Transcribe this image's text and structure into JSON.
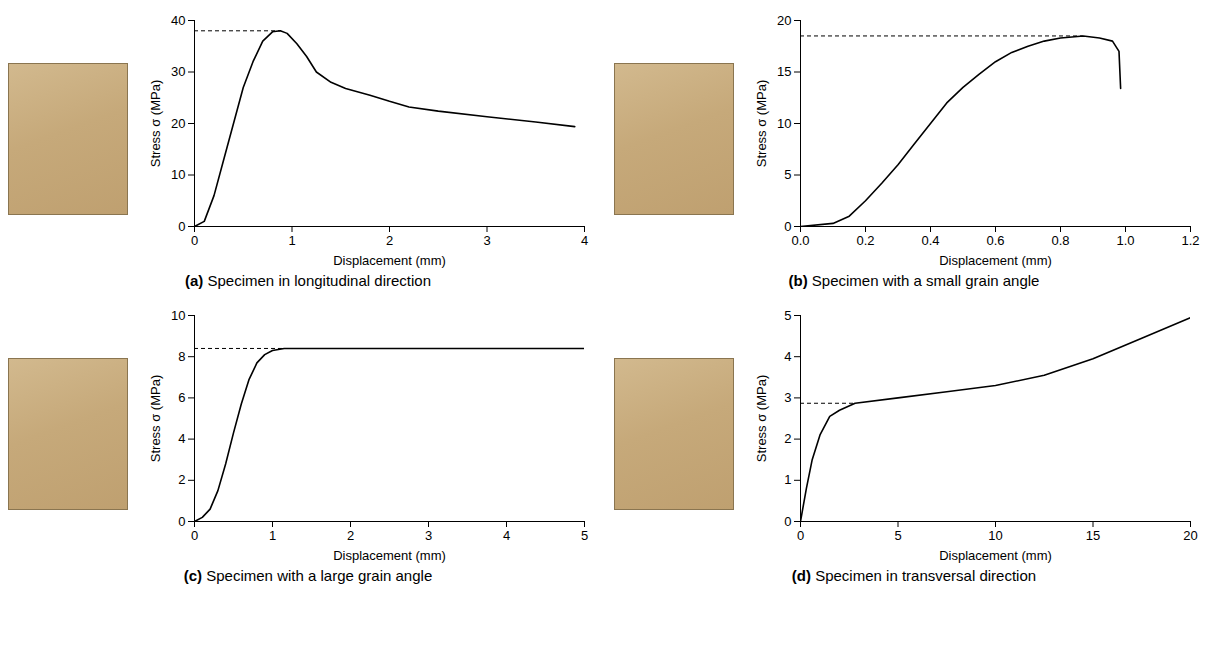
{
  "chart_data": [
    {
      "type": "line",
      "title": "(a) Specimen in longitudinal direction",
      "x_label": "Displacement (mm)",
      "y_label": "Stress σ (MPa)",
      "color": "#000000",
      "x": [
        0,
        0.1,
        0.2,
        0.3,
        0.4,
        0.5,
        0.6,
        0.7,
        0.8,
        0.88,
        0.95,
        1.05,
        1.15,
        1.25,
        1.4,
        1.55,
        1.8,
        2.0,
        2.2,
        2.5,
        3.0,
        3.5,
        3.9
      ],
      "values": [
        0,
        1,
        6,
        13,
        20,
        27,
        32,
        36,
        37.8,
        38,
        37.5,
        35.5,
        33,
        30,
        28,
        26.8,
        25.5,
        24.3,
        23.2,
        22.4,
        21.3,
        20.3,
        19.4
      ],
      "xlim": [
        0,
        4
      ],
      "xticks": [
        0,
        1,
        2,
        3,
        4
      ],
      "ylim": [
        0,
        40
      ],
      "yticks": [
        0,
        10,
        20,
        30,
        40
      ],
      "reference_line": {
        "y": 38,
        "x_end": 0.88,
        "line_style": "dashed"
      }
    },
    {
      "type": "line",
      "title": "(b) Specimen with a small grain angle",
      "x_label": "Displacement (mm)",
      "y_label": "Stress σ (MPa)",
      "color": "#000000",
      "x": [
        0,
        0.1,
        0.15,
        0.2,
        0.25,
        0.3,
        0.35,
        0.4,
        0.45,
        0.5,
        0.55,
        0.6,
        0.65,
        0.7,
        0.75,
        0.8,
        0.87,
        0.92,
        0.96,
        0.98,
        0.985
      ],
      "values": [
        0,
        0.3,
        1,
        2.5,
        4.2,
        6,
        8,
        10,
        12,
        13.5,
        14.8,
        16,
        16.9,
        17.5,
        18,
        18.3,
        18.5,
        18.3,
        18,
        17,
        13.4
      ],
      "xlim": [
        0,
        1.2
      ],
      "xticks": [
        {
          "value": 0,
          "label": "0.0"
        },
        0.2,
        0.4,
        0.6,
        0.8,
        {
          "value": 1,
          "label": "1.0"
        },
        1.2
      ],
      "ylim": [
        0,
        20
      ],
      "yticks": [
        0,
        5,
        10,
        15,
        20
      ],
      "reference_line": {
        "y": 18.5,
        "x_end": 0.87,
        "line_style": "dashed"
      }
    },
    {
      "type": "line",
      "title": "(c) Specimen with a large grain angle",
      "x_label": "Displacement (mm)",
      "y_label": "Stress σ (MPa)",
      "color": "#000000",
      "x": [
        0,
        0.1,
        0.2,
        0.3,
        0.4,
        0.5,
        0.6,
        0.7,
        0.8,
        0.9,
        1.0,
        1.15,
        2,
        3,
        4,
        5
      ],
      "values": [
        0,
        0.2,
        0.6,
        1.5,
        2.8,
        4.3,
        5.7,
        6.9,
        7.7,
        8.1,
        8.3,
        8.4,
        8.4,
        8.4,
        8.4,
        8.4
      ],
      "xlim": [
        0,
        5
      ],
      "xticks": [
        0,
        1,
        2,
        3,
        4,
        5
      ],
      "ylim": [
        0,
        10
      ],
      "yticks": [
        0,
        2,
        4,
        6,
        8,
        10
      ],
      "reference_line": {
        "y": 8.4,
        "x_end": 1.15,
        "line_style": "dashed"
      }
    },
    {
      "type": "line",
      "title": "(d) Specimen in transversal direction",
      "x_label": "Displacement (mm)",
      "y_label": "Stress σ (MPa)",
      "color": "#000000",
      "x": [
        0,
        0.3,
        0.6,
        1,
        1.5,
        2,
        2.8,
        5,
        7.5,
        10,
        12.5,
        15,
        17.5,
        20
      ],
      "values": [
        0,
        0.8,
        1.5,
        2.1,
        2.55,
        2.7,
        2.87,
        3,
        3.15,
        3.3,
        3.55,
        3.95,
        4.45,
        4.95
      ],
      "xlim": [
        0,
        20
      ],
      "xticks": [
        0,
        5,
        10,
        15,
        20
      ],
      "ylim": [
        0,
        5
      ],
      "yticks": [
        0,
        1,
        2,
        3,
        4,
        5
      ],
      "reference_line": {
        "y": 2.87,
        "x_end": 2.8,
        "line_style": "dashed"
      }
    }
  ]
}
